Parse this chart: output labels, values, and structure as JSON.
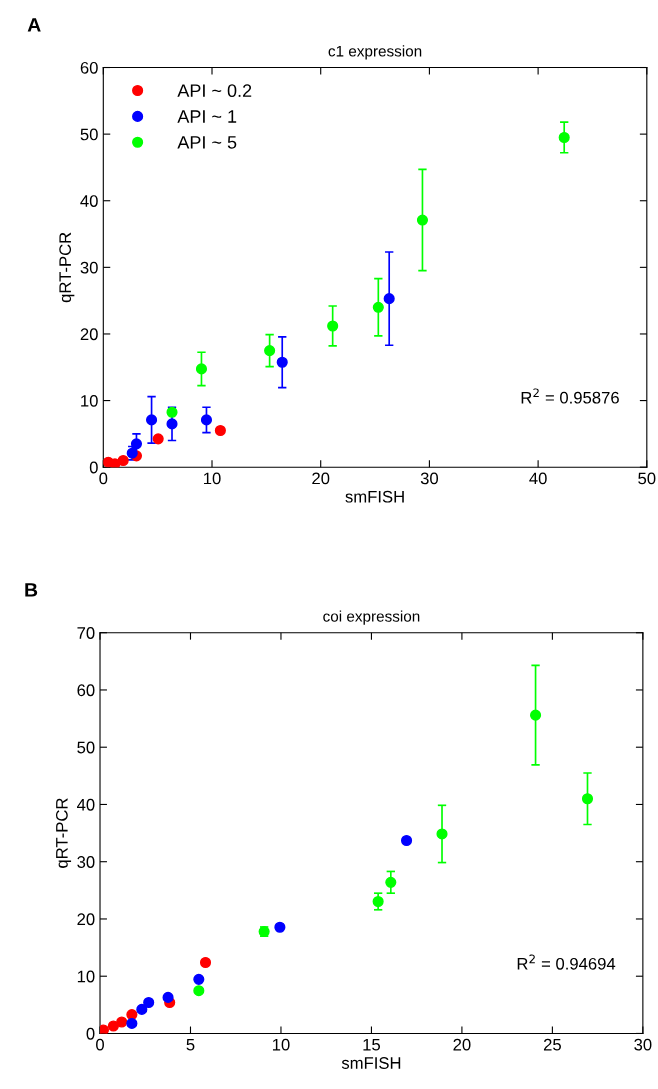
{
  "chart_data": [
    {
      "type": "scatter",
      "title": "c1 expression",
      "xlabel": "smFISH",
      "ylabel": "qRT-PCR",
      "annotations": [
        "A",
        "R$^{2}$ = 0.95876"
      ],
      "xlim": [
        0,
        50
      ],
      "xticks": [
        0,
        10,
        20,
        30,
        40,
        50
      ],
      "ylim": [
        0,
        60
      ],
      "yticks": [
        0,
        10,
        20,
        30,
        40,
        50,
        60
      ],
      "grid": false,
      "legend": "top left",
      "marker": "circle",
      "series": [
        {
          "name": "API ~ 0.2",
          "color": "#ff0000",
          "x": [
            0.46,
            1.07,
            1.83,
            3.05,
            5.05,
            10.77
          ],
          "values": [
            0.75,
            0.5,
            1.0,
            1.7,
            4.25,
            5.5
          ],
          "errors": [
            null,
            null,
            null,
            null,
            null,
            null
          ]
        },
        {
          "name": "API ~ 1",
          "color": "#0000ff",
          "x": [
            2.66,
            3.05,
            4.44,
            6.32,
            9.49,
            16.46,
            26.3
          ],
          "values": [
            2.1,
            3.5,
            7.1,
            6.5,
            7.1,
            15.75,
            25.3
          ],
          "errors": [
            1.0,
            1.5,
            3.5,
            2.5,
            1.9,
            3.8,
            7.0
          ]
        },
        {
          "name": "API ~ 5",
          "color": "#00ff00",
          "x": [
            6.32,
            9.03,
            15.3,
            21.1,
            25.3,
            29.36,
            42.4
          ],
          "values": [
            8.25,
            14.75,
            17.5,
            21.2,
            24.0,
            37.1,
            49.5
          ],
          "errors": [
            null,
            2.5,
            2.4,
            3.0,
            4.3,
            7.6,
            2.3
          ]
        }
      ]
    },
    {
      "type": "scatter",
      "title": "coi expression",
      "xlabel": "smFISH",
      "ylabel": "qRT-PCR",
      "annotations": [
        "B",
        "R$^{2}$ = 0.94694"
      ],
      "xlim": [
        0,
        30
      ],
      "xticks": [
        0,
        5,
        10,
        15,
        20,
        25,
        30
      ],
      "ylim": [
        0,
        70
      ],
      "yticks": [
        0,
        10,
        20,
        30,
        40,
        50,
        60,
        70
      ],
      "grid": false,
      "legend": false,
      "marker": "circle",
      "series": [
        {
          "color": "#ff0000",
          "x": [
            0.19,
            0.74,
            1.2,
            1.76,
            3.85,
            5.83
          ],
          "values": [
            0.6,
            1.3,
            2.0,
            3.3,
            5.4,
            12.4
          ],
          "errors": [
            null,
            null,
            null,
            null,
            null,
            null
          ]
        },
        {
          "color": "#0000ff",
          "x": [
            1.76,
            2.31,
            2.69,
            3.76,
            5.46,
            9.94,
            16.94
          ],
          "values": [
            1.75,
            4.2,
            5.4,
            6.3,
            9.45,
            18.55,
            33.7
          ],
          "errors": [
            null,
            null,
            null,
            null,
            null,
            null,
            null
          ]
        },
        {
          "color": "#00ff00",
          "x": [
            5.46,
            9.07,
            15.37,
            16.07,
            18.9,
            24.07,
            26.94
          ],
          "values": [
            7.47,
            17.8,
            23.05,
            26.4,
            34.85,
            55.6,
            41.0
          ],
          "errors": [
            null,
            0.8,
            1.45,
            1.9,
            5.0,
            8.7,
            4.5
          ]
        }
      ]
    }
  ]
}
